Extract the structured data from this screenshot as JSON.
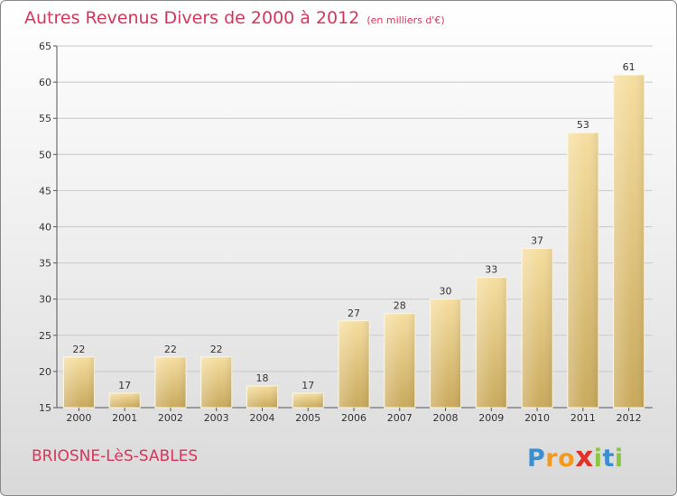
{
  "title": "Autres Revenus Divers de 2000 à 2012",
  "subtitle": "(en milliers d'€)",
  "location": "BRIOSNE-LèS-SABLES",
  "logo": {
    "letters": [
      "P",
      "r",
      "o",
      "x",
      "i",
      "t",
      "i"
    ],
    "colors": [
      "#3a8fd0",
      "#f39a1e",
      "#f39a1e",
      "#e0312a",
      "#8cc63e",
      "#3a8fd0",
      "#8cc63e"
    ]
  },
  "colors": {
    "title": "#d6365c",
    "bar_light": "#f6dea0",
    "bar_dark": "#c9a95c",
    "grid": "#c8c8c8"
  },
  "chart_data": {
    "type": "bar",
    "title": "Autres Revenus Divers de 2000 à 2012",
    "subtitle": "(en milliers d'€)",
    "categories": [
      "2000",
      "2001",
      "2002",
      "2003",
      "2004",
      "2005",
      "2006",
      "2007",
      "2008",
      "2009",
      "2010",
      "2011",
      "2012"
    ],
    "values": [
      22,
      17,
      22,
      22,
      18,
      17,
      27,
      28,
      30,
      33,
      37,
      53,
      61
    ],
    "xlabel": "",
    "ylabel": "",
    "ylim": [
      15,
      65
    ],
    "yticks": [
      15,
      20,
      25,
      30,
      35,
      40,
      45,
      50,
      55,
      60,
      65
    ],
    "grid": true
  }
}
